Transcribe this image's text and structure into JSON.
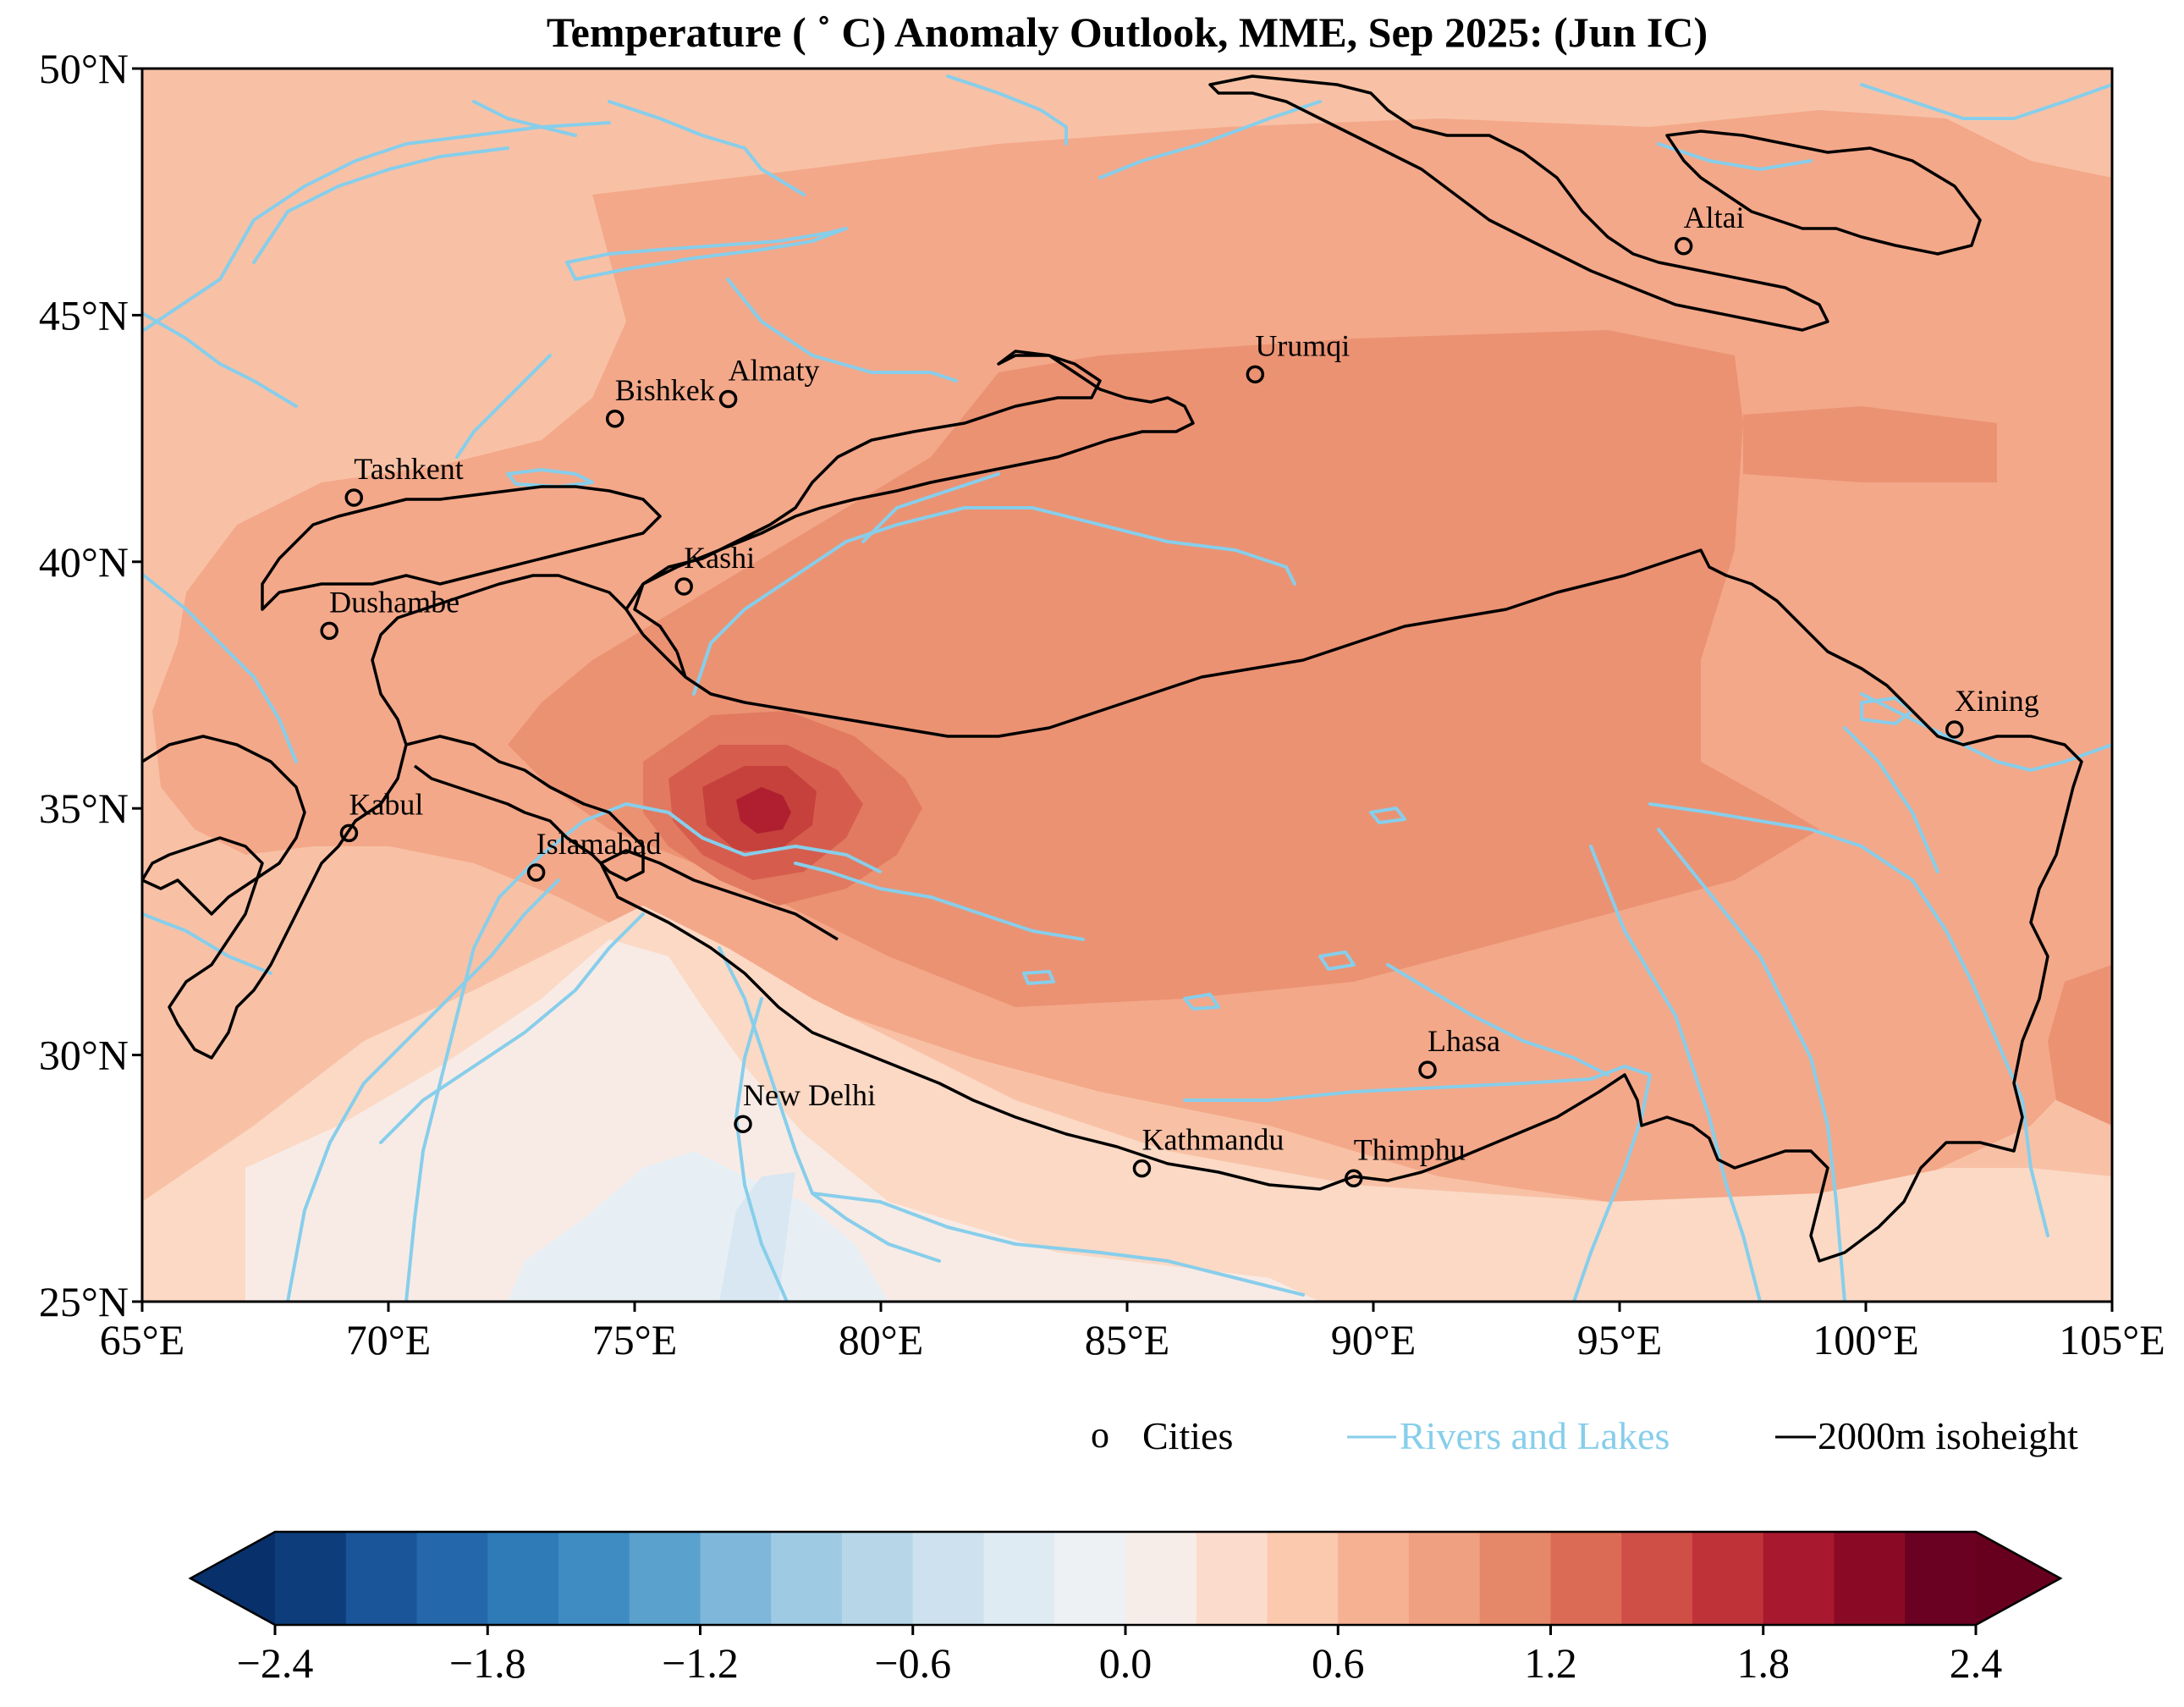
{
  "title": "Temperature ( ˚ C) Anomaly Outlook, MME, Sep  2025:  (Jun IC)",
  "map": {
    "lon_range": [
      65,
      105
    ],
    "lat_range": [
      25,
      50
    ],
    "x_ticks": [
      {
        "value": 65,
        "label": "65°E"
      },
      {
        "value": 70,
        "label": "70°E"
      },
      {
        "value": 75,
        "label": "75°E"
      },
      {
        "value": 80,
        "label": "80°E"
      },
      {
        "value": 85,
        "label": "85°E"
      },
      {
        "value": 90,
        "label": "90°E"
      },
      {
        "value": 95,
        "label": "95°E"
      },
      {
        "value": 100,
        "label": "100°E"
      },
      {
        "value": 105,
        "label": "105°E"
      }
    ],
    "y_ticks": [
      {
        "value": 25,
        "label": "25°N"
      },
      {
        "value": 30,
        "label": "30°N"
      },
      {
        "value": 35,
        "label": "35°N"
      },
      {
        "value": 40,
        "label": "40°N"
      },
      {
        "value": 45,
        "label": "45°N"
      },
      {
        "value": 50,
        "label": "50°N"
      }
    ],
    "cities": [
      {
        "name": "Altai",
        "lon": 96.3,
        "lat": 46.4
      },
      {
        "name": "Urumqi",
        "lon": 87.6,
        "lat": 43.8
      },
      {
        "name": "Almaty",
        "lon": 76.9,
        "lat": 43.3
      },
      {
        "name": "Bishkek",
        "lon": 74.6,
        "lat": 42.9
      },
      {
        "name": "Tashkent",
        "lon": 69.3,
        "lat": 41.3
      },
      {
        "name": "Kashi",
        "lon": 76.0,
        "lat": 39.5
      },
      {
        "name": "Dushambe",
        "lon": 68.8,
        "lat": 38.6
      },
      {
        "name": "Xining",
        "lon": 101.8,
        "lat": 36.6
      },
      {
        "name": "Kabul",
        "lon": 69.2,
        "lat": 34.5
      },
      {
        "name": "Islamabad",
        "lon": 73.0,
        "lat": 33.7
      },
      {
        "name": "Lhasa",
        "lon": 91.1,
        "lat": 29.7
      },
      {
        "name": "New Delhi",
        "lon": 77.2,
        "lat": 28.6
      },
      {
        "name": "Kathmandu",
        "lon": 85.3,
        "lat": 27.7
      },
      {
        "name": "Thimphu",
        "lon": 89.6,
        "lat": 27.5
      }
    ]
  },
  "legend": {
    "cities_marker": "o",
    "cities_label": "Cities",
    "rivers_label": "Rivers and Lakes",
    "isoheight_label": "2000m isoheight"
  },
  "colorbar": {
    "levels": [
      -2.4,
      -2.2,
      -2.0,
      -1.8,
      -1.6,
      -1.4,
      -1.2,
      -1.0,
      -0.8,
      -0.6,
      -0.4,
      -0.2,
      0.0,
      0.2,
      0.4,
      0.6,
      0.8,
      1.0,
      1.2,
      1.4,
      1.6,
      1.8,
      2.0,
      2.2,
      2.4
    ],
    "ticks": [
      "−2.4",
      "−1.8",
      "−1.2",
      "−0.6",
      "0.0",
      "0.6",
      "1.2",
      "1.8",
      "2.4"
    ],
    "colors": [
      "#08306b",
      "#0d3d7a",
      "#1a5499",
      "#2468ab",
      "#2f7bb8",
      "#3e8cc2",
      "#5aa1cd",
      "#7fb7da",
      "#9ecbe3",
      "#b7d7e9",
      "#cde2ee",
      "#dfebf2",
      "#eef1f4",
      "#f7ede8",
      "#fbdccc",
      "#fbc9ae",
      "#f6b092",
      "#efa080",
      "#e58769",
      "#dc6b55",
      "#cf4f47",
      "#bf3238",
      "#a8182e",
      "#8a0a26",
      "#6a0022"
    ],
    "under_color": "#08306b",
    "over_color": "#67001f"
  },
  "colors": {
    "rivers": "#87ceeb",
    "isoheight": "#000000",
    "base_anomaly": "#f8c1a5"
  }
}
